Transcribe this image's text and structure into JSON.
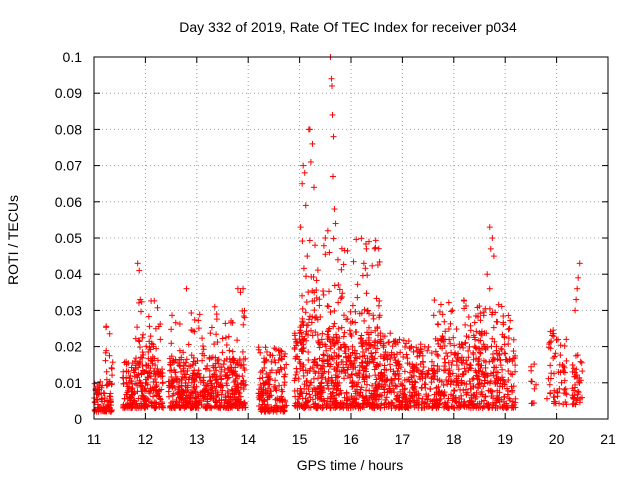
{
  "chart_data": {
    "type": "scatter",
    "title": "Day 332 of 2019, Rate Of TEC Index for receiver p034",
    "xlabel": "GPS time / hours",
    "ylabel": "ROTI / TECUs",
    "xlim": [
      11,
      21
    ],
    "ylim": [
      0,
      0.1
    ],
    "x_ticks": [
      "11",
      "12",
      "13",
      "14",
      "15",
      "16",
      "17",
      "18",
      "19",
      "20",
      "21"
    ],
    "y_ticks": [
      "0",
      "0.01",
      "0.02",
      "0.03",
      "0.04",
      "0.05",
      "0.06",
      "0.07",
      "0.08",
      "0.09",
      "0.1"
    ],
    "grid": true,
    "marker": "+",
    "series_color": "#ff0000",
    "clusters": [
      {
        "x_start": 11.0,
        "x_end": 11.35,
        "y_low": 0.002,
        "y_high": 0.011,
        "count": 90
      },
      {
        "x_start": 11.2,
        "x_end": 11.4,
        "y_low": 0.012,
        "y_high": 0.028,
        "count": 12
      },
      {
        "x_start": 11.55,
        "x_end": 12.35,
        "y_low": 0.003,
        "y_high": 0.016,
        "count": 230
      },
      {
        "x_start": 11.8,
        "x_end": 12.3,
        "y_low": 0.016,
        "y_high": 0.033,
        "count": 40
      },
      {
        "x_start": 12.45,
        "x_end": 13.95,
        "y_low": 0.003,
        "y_high": 0.017,
        "count": 480
      },
      {
        "x_start": 12.5,
        "x_end": 13.95,
        "y_low": 0.017,
        "y_high": 0.03,
        "count": 50
      },
      {
        "x_start": 14.2,
        "x_end": 14.75,
        "y_low": 0.002,
        "y_high": 0.02,
        "count": 170
      },
      {
        "x_start": 14.9,
        "x_end": 16.95,
        "y_low": 0.003,
        "y_high": 0.024,
        "count": 700
      },
      {
        "x_start": 15.0,
        "x_end": 16.6,
        "y_low": 0.024,
        "y_high": 0.05,
        "count": 120
      },
      {
        "x_start": 16.95,
        "x_end": 19.2,
        "y_low": 0.003,
        "y_high": 0.022,
        "count": 620
      },
      {
        "x_start": 17.6,
        "x_end": 19.1,
        "y_low": 0.022,
        "y_high": 0.033,
        "count": 70
      },
      {
        "x_start": 19.5,
        "x_end": 19.6,
        "y_low": 0.004,
        "y_high": 0.018,
        "count": 10
      },
      {
        "x_start": 19.8,
        "x_end": 20.0,
        "y_low": 0.004,
        "y_high": 0.025,
        "count": 30
      },
      {
        "x_start": 20.0,
        "x_end": 20.2,
        "y_low": 0.004,
        "y_high": 0.022,
        "count": 30
      },
      {
        "x_start": 20.3,
        "x_end": 20.5,
        "y_low": 0.004,
        "y_high": 0.02,
        "count": 40
      }
    ],
    "notable_points": [
      {
        "x": 11.85,
        "y": 0.043
      },
      {
        "x": 11.88,
        "y": 0.041
      },
      {
        "x": 11.9,
        "y": 0.033
      },
      {
        "x": 12.8,
        "y": 0.036
      },
      {
        "x": 13.35,
        "y": 0.031
      },
      {
        "x": 13.8,
        "y": 0.036
      },
      {
        "x": 13.85,
        "y": 0.035
      },
      {
        "x": 13.9,
        "y": 0.036
      },
      {
        "x": 15.02,
        "y": 0.053
      },
      {
        "x": 15.05,
        "y": 0.065
      },
      {
        "x": 15.07,
        "y": 0.07
      },
      {
        "x": 15.1,
        "y": 0.068
      },
      {
        "x": 15.12,
        "y": 0.059
      },
      {
        "x": 15.15,
        "y": 0.045
      },
      {
        "x": 15.18,
        "y": 0.08
      },
      {
        "x": 15.2,
        "y": 0.08
      },
      {
        "x": 15.22,
        "y": 0.071
      },
      {
        "x": 15.25,
        "y": 0.076
      },
      {
        "x": 15.28,
        "y": 0.064
      },
      {
        "x": 15.3,
        "y": 0.048
      },
      {
        "x": 15.5,
        "y": 0.05
      },
      {
        "x": 15.55,
        "y": 0.052
      },
      {
        "x": 15.58,
        "y": 0.046
      },
      {
        "x": 15.6,
        "y": 0.1
      },
      {
        "x": 15.62,
        "y": 0.094
      },
      {
        "x": 15.63,
        "y": 0.092
      },
      {
        "x": 15.64,
        "y": 0.084
      },
      {
        "x": 15.66,
        "y": 0.078
      },
      {
        "x": 15.65,
        "y": 0.067
      },
      {
        "x": 15.68,
        "y": 0.058
      },
      {
        "x": 15.7,
        "y": 0.054
      },
      {
        "x": 16.35,
        "y": 0.049
      },
      {
        "x": 16.3,
        "y": 0.047
      },
      {
        "x": 16.25,
        "y": 0.043
      },
      {
        "x": 18.7,
        "y": 0.053
      },
      {
        "x": 18.75,
        "y": 0.05
      },
      {
        "x": 18.72,
        "y": 0.047
      },
      {
        "x": 18.78,
        "y": 0.045
      },
      {
        "x": 18.65,
        "y": 0.04
      },
      {
        "x": 18.7,
        "y": 0.036
      },
      {
        "x": 20.45,
        "y": 0.043
      },
      {
        "x": 20.42,
        "y": 0.039
      },
      {
        "x": 20.4,
        "y": 0.036
      },
      {
        "x": 20.38,
        "y": 0.033
      },
      {
        "x": 20.36,
        "y": 0.03
      }
    ]
  }
}
